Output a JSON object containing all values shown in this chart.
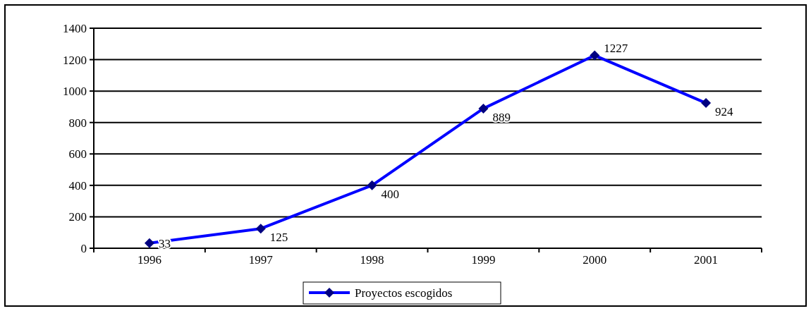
{
  "chart_data": {
    "type": "line",
    "categories": [
      "1996",
      "1997",
      "1998",
      "1999",
      "2000",
      "2001"
    ],
    "series": [
      {
        "name": "Proyectos escogidos",
        "color": "#0000ff",
        "values": [
          33,
          125,
          400,
          889,
          1227,
          924
        ]
      }
    ],
    "ylim": [
      0,
      1400
    ],
    "yticks": [
      0,
      200,
      400,
      600,
      800,
      1000,
      1200,
      1400
    ],
    "grid": "y",
    "legend": "bottom",
    "marker": "diamond",
    "data_labels": true
  }
}
